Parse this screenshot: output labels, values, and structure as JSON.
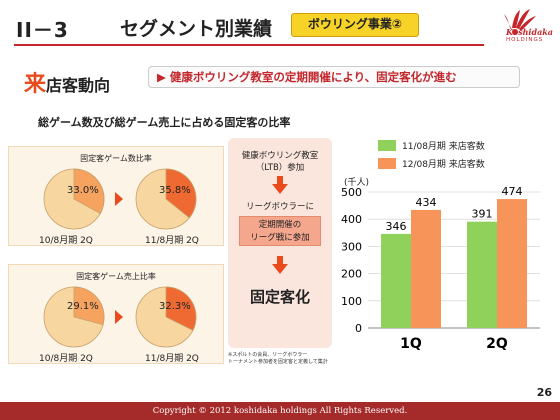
{
  "header": {
    "section_num": "II－3",
    "title": "セグメント別業績",
    "badge": "ボウリング事業②",
    "logo_name": "Koshidaka",
    "logo_sub": "HOLDINGS"
  },
  "section": {
    "head_big": "来",
    "head_rest": "店客動向",
    "banner": "▶ 健康ボウリング教室の定期開催により、固定客化が進む"
  },
  "subtitle": "総ゲーム数及び総ゲーム売上に占める固定客の比率",
  "pies": {
    "game_count": {
      "title": "固定客ゲーム数比率",
      "left": {
        "label": "33.0%",
        "value": 33.0,
        "period": "10/8月期 2Q"
      },
      "right": {
        "label": "35.8%",
        "value": 35.8,
        "period": "11/8月期 2Q"
      }
    },
    "game_sales": {
      "title": "固定客ゲーム売上比率",
      "left": {
        "label": "29.1%",
        "value": 29.1,
        "period": "10/8月期 2Q"
      },
      "right": {
        "label": "32.3%",
        "value": 32.3,
        "period": "11/8月期 2Q"
      }
    }
  },
  "flow": {
    "step1_line1": "健康ボウリング教室",
    "step1_line2": "（LTB）参加",
    "step2": "リーグボウラーに",
    "step3_line1": "定期開催の",
    "step3_line2": "リーグ戦に参加",
    "result": "固定客化",
    "note_line1": "※スポルトの会員、リーグボウラー",
    "note_line2": "トーナメント参加者を固定客と定義して集計"
  },
  "colors": {
    "accent": "#c3262b",
    "pie_base": "#f8d6a0",
    "pie_left_slice": "#f5a35f",
    "pie_right_slice": "#ef6a33",
    "bar_prev": "#8fd15a",
    "bar_curr": "#f7945a"
  },
  "chart_data": {
    "type": "bar",
    "categories": [
      "1Q",
      "2Q"
    ],
    "series": [
      {
        "name": "11/08月期 来店客数",
        "values": [
          346,
          391
        ]
      },
      {
        "name": "12/08月期 来店客数",
        "values": [
          434,
          474
        ]
      }
    ],
    "ylabel": "(千人)",
    "ylim": [
      0,
      500
    ],
    "yticks": [
      "0",
      "100",
      "200",
      "300",
      "400",
      "500"
    ],
    "grid": true,
    "legend": "top"
  },
  "footer": {
    "copyright": "Copyright © 2012 koshidaka holdings All Rights Reserved.",
    "page": "26"
  }
}
